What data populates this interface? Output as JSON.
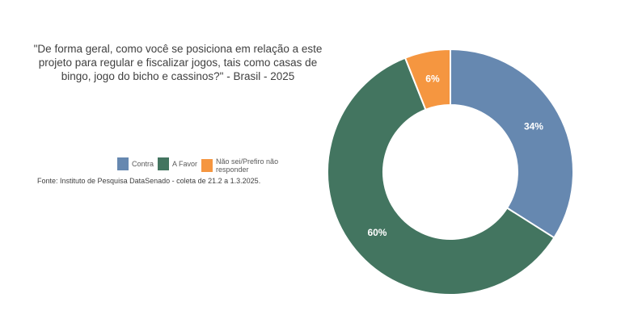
{
  "chart_data": {
    "type": "pie",
    "donut": true,
    "title": "\"De forma geral, como você se posiciona em relação a este projeto para regular e fiscalizar jogos, tais como casas de bingo, jogo do bicho e cassinos?\" - Brasil - 2025",
    "categories": [
      "Contra",
      "A Favor",
      "Não sei/Prefiro não responder"
    ],
    "values": [
      34,
      60,
      6
    ],
    "labels": [
      "34%",
      "60%",
      "6%"
    ],
    "colors": [
      "#6688b0",
      "#437560",
      "#f59640"
    ],
    "legend_position": "left",
    "source": "Fonte: Instituto de Pesquisa DataSenado - coleta de 21.2 a 1.3.2025."
  }
}
